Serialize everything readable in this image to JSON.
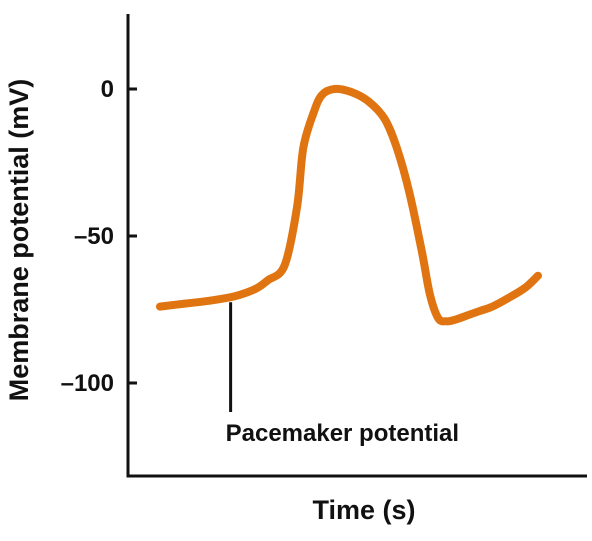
{
  "chart_data": {
    "type": "line",
    "title": "",
    "xlabel": "Time (s)",
    "ylabel": "Membrane potential (mV)",
    "ylim": [
      -135,
      25
    ],
    "yticks": [
      0,
      -50,
      -100
    ],
    "ytick_labels": [
      "0",
      "–50",
      "–100"
    ],
    "x_ticks_shown": false,
    "grid": false,
    "series": [
      {
        "color": "#E07411",
        "x": [
          0.0,
          0.06,
          0.12,
          0.18,
          0.23,
          0.26,
          0.3,
          0.33,
          0.345,
          0.37,
          0.39,
          0.42,
          0.46,
          0.5,
          0.54,
          0.57,
          0.6,
          0.63,
          0.65,
          0.67,
          0.69,
          0.71,
          0.74,
          0.77,
          0.8,
          0.84,
          0.88,
          0.91
        ],
        "y": [
          -74,
          -73,
          -72,
          -70.5,
          -68,
          -65,
          -60,
          -40,
          -20,
          -8,
          -2,
          0,
          -1,
          -4,
          -10,
          -20,
          -35,
          -55,
          -70,
          -78,
          -79,
          -78.5,
          -77,
          -75.5,
          -74,
          -71,
          -67.5,
          -63.5
        ]
      }
    ],
    "annotations": [
      {
        "text": "Pacemaker potential",
        "x": 0.17,
        "y": -70.5
      }
    ]
  }
}
